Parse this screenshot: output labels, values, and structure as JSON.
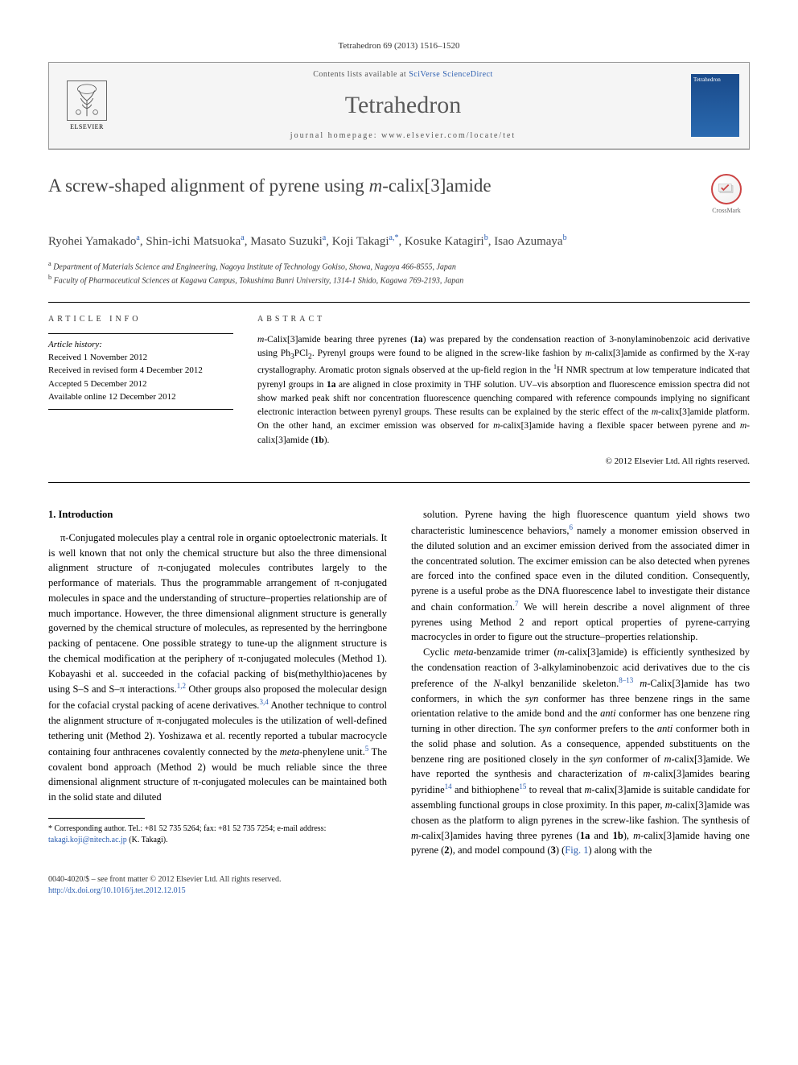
{
  "citation": "Tetrahedron 69 (2013) 1516–1520",
  "header": {
    "elsevier": "ELSEVIER",
    "contents_prefix": "Contents lists available at ",
    "contents_link": "SciVerse ScienceDirect",
    "journal": "Tetrahedron",
    "homepage_prefix": "journal homepage: ",
    "homepage_url": "www.elsevier.com/locate/tet",
    "cover_label": "Tetrahedron"
  },
  "title": {
    "pre": "A screw-shaped alignment of pyrene using ",
    "ital": "m",
    "post": "-calix[3]amide"
  },
  "crossmark": "CrossMark",
  "authors_html": "Ryohei Yamakado<sup>a</sup>, Shin-ichi Matsuoka<sup>a</sup>, Masato Suzuki<sup>a</sup>, Koji Takagi<sup>a,*</sup>, Kosuke Katagiri<sup>b</sup>, Isao Azumaya<sup>b</sup>",
  "affiliations": {
    "a": "Department of Materials Science and Engineering, Nagoya Institute of Technology Gokiso, Showa, Nagoya 466-8555, Japan",
    "b": "Faculty of Pharmaceutical Sciences at Kagawa Campus, Tokushima Bunri University, 1314-1 Shido, Kagawa 769-2193, Japan"
  },
  "article_info": {
    "heading": "ARTICLE INFO",
    "history_label": "Article history:",
    "items": [
      "Received 1 November 2012",
      "Received in revised form 4 December 2012",
      "Accepted 5 December 2012",
      "Available online 12 December 2012"
    ]
  },
  "abstract": {
    "heading": "ABSTRACT",
    "text_html": "<span class=\"ital\">m</span>-Calix[3]amide bearing three pyrenes (<b>1a</b>) was prepared by the condensation reaction of 3-nonylaminobenzoic acid derivative using Ph<sub>3</sub>PCl<sub>2</sub>. Pyrenyl groups were found to be aligned in the screw-like fashion by <span class=\"ital\">m</span>-calix[3]amide as confirmed by the X-ray crystallography. Aromatic proton signals observed at the up-field region in the <sup>1</sup>H NMR spectrum at low temperature indicated that pyrenyl groups in <b>1a</b> are aligned in close proximity in THF solution. UV–vis absorption and fluorescence emission spectra did not show marked peak shift nor concentration fluorescence quenching compared with reference compounds implying no significant electronic interaction between pyrenyl groups. These results can be explained by the steric effect of the <span class=\"ital\">m</span>-calix[3]amide platform. On the other hand, an excimer emission was observed for <span class=\"ital\">m</span>-calix[3]amide having a flexible spacer between pyrene and <span class=\"ital\">m</span>-calix[3]amide (<b>1b</b>).",
    "copyright": "© 2012 Elsevier Ltd. All rights reserved."
  },
  "body": {
    "section_heading": "1. Introduction",
    "col1_p1_html": "π-Conjugated molecules play a central role in organic optoelectronic materials. It is well known that not only the chemical structure but also the three dimensional alignment structure of π-conjugated molecules contributes largely to the performance of materials. Thus the programmable arrangement of π-conjugated molecules in space and the understanding of structure–properties relationship are of much importance. However, the three dimensional alignment structure is generally governed by the chemical structure of molecules, as represented by the herringbone packing of pentacene. One possible strategy to tune-up the alignment structure is the chemical modification at the periphery of π-conjugated molecules (Method 1). Kobayashi et al. succeeded in the cofacial packing of bis(methylthio)acenes by using S–S and S–π interactions.<sup>1,2</sup> Other groups also proposed the molecular design for the cofacial crystal packing of acene derivatives.<sup>3,4</sup> Another technique to control the alignment structure of π-conjugated molecules is the utilization of well-defined tethering unit (Method 2). Yoshizawa et al. recently reported a tubular macrocycle containing four anthracenes covalently connected by the <span class=\"ital\">meta</span>-phenylene unit.<sup>5</sup> The covalent bond approach (Method 2) would be much reliable since the three dimensional alignment structure of π-conjugated molecules can be maintained both in the solid state and diluted",
    "col2_p1_html": "solution. Pyrene having the high fluorescence quantum yield shows two characteristic luminescence behaviors,<sup>6</sup> namely a monomer emission observed in the diluted solution and an excimer emission derived from the associated dimer in the concentrated solution. The excimer emission can be also detected when pyrenes are forced into the confined space even in the diluted condition. Consequently, pyrene is a useful probe as the DNA fluorescence label to investigate their distance and chain conformation.<sup>7</sup> We will herein describe a novel alignment of three pyrenes using Method 2 and report optical properties of pyrene-carrying macrocycles in order to figure out the structure–properties relationship.",
    "col2_p2_html": "Cyclic <span class=\"ital\">meta</span>-benzamide trimer (<span class=\"ital\">m</span>-calix[3]amide) is efficiently synthesized by the condensation reaction of 3-alkylaminobenzoic acid derivatives due to the cis preference of the <span class=\"ital\">N</span>-alkyl benzanilide skeleton.<sup>8–13</sup> <span class=\"ital\">m</span>-Calix[3]amide has two conformers, in which the <span class=\"ital\">syn</span> conformer has three benzene rings in the same orientation relative to the amide bond and the <span class=\"ital\">anti</span> conformer has one benzene ring turning in other direction. The <span class=\"ital\">syn</span> conformer prefers to the <span class=\"ital\">anti</span> conformer both in the solid phase and solution. As a consequence, appended substituents on the benzene ring are positioned closely in the <span class=\"ital\">syn</span> conformer of <span class=\"ital\">m</span>-calix[3]amide. We have reported the synthesis and characterization of <span class=\"ital\">m</span>-calix[3]amides bearing pyridine<sup>14</sup> and bithiophene<sup>15</sup> to reveal that <span class=\"ital\">m</span>-calix[3]amide is suitable candidate for assembling functional groups in close proximity. In this paper, <span class=\"ital\">m</span>-calix[3]amide was chosen as the platform to align pyrenes in the screw-like fashion. The synthesis of <span class=\"ital\">m</span>-calix[3]amides having three pyrenes (<b>1a</b> and <b>1b</b>), <span class=\"ital\">m</span>-calix[3]amide having one pyrene (<b>2</b>), and model compound (<b>3</b>) (<span class=\"fig-link\">Fig. 1</span>) along with the"
  },
  "footnote": {
    "text_prefix": "* Corresponding author. Tel.: +81 52 735 5264; fax: +81 52 735 7254; e-mail address: ",
    "email": "takagi.koji@nitech.ac.jp",
    "text_suffix": " (K. Takagi)."
  },
  "footer": {
    "issn_line": "0040-4020/$ – see front matter © 2012 Elsevier Ltd. All rights reserved.",
    "doi_url": "http://dx.doi.org/10.1016/j.tet.2012.12.015"
  },
  "colors": {
    "link": "#2a5db0",
    "text": "#000000",
    "heading": "#444444"
  }
}
